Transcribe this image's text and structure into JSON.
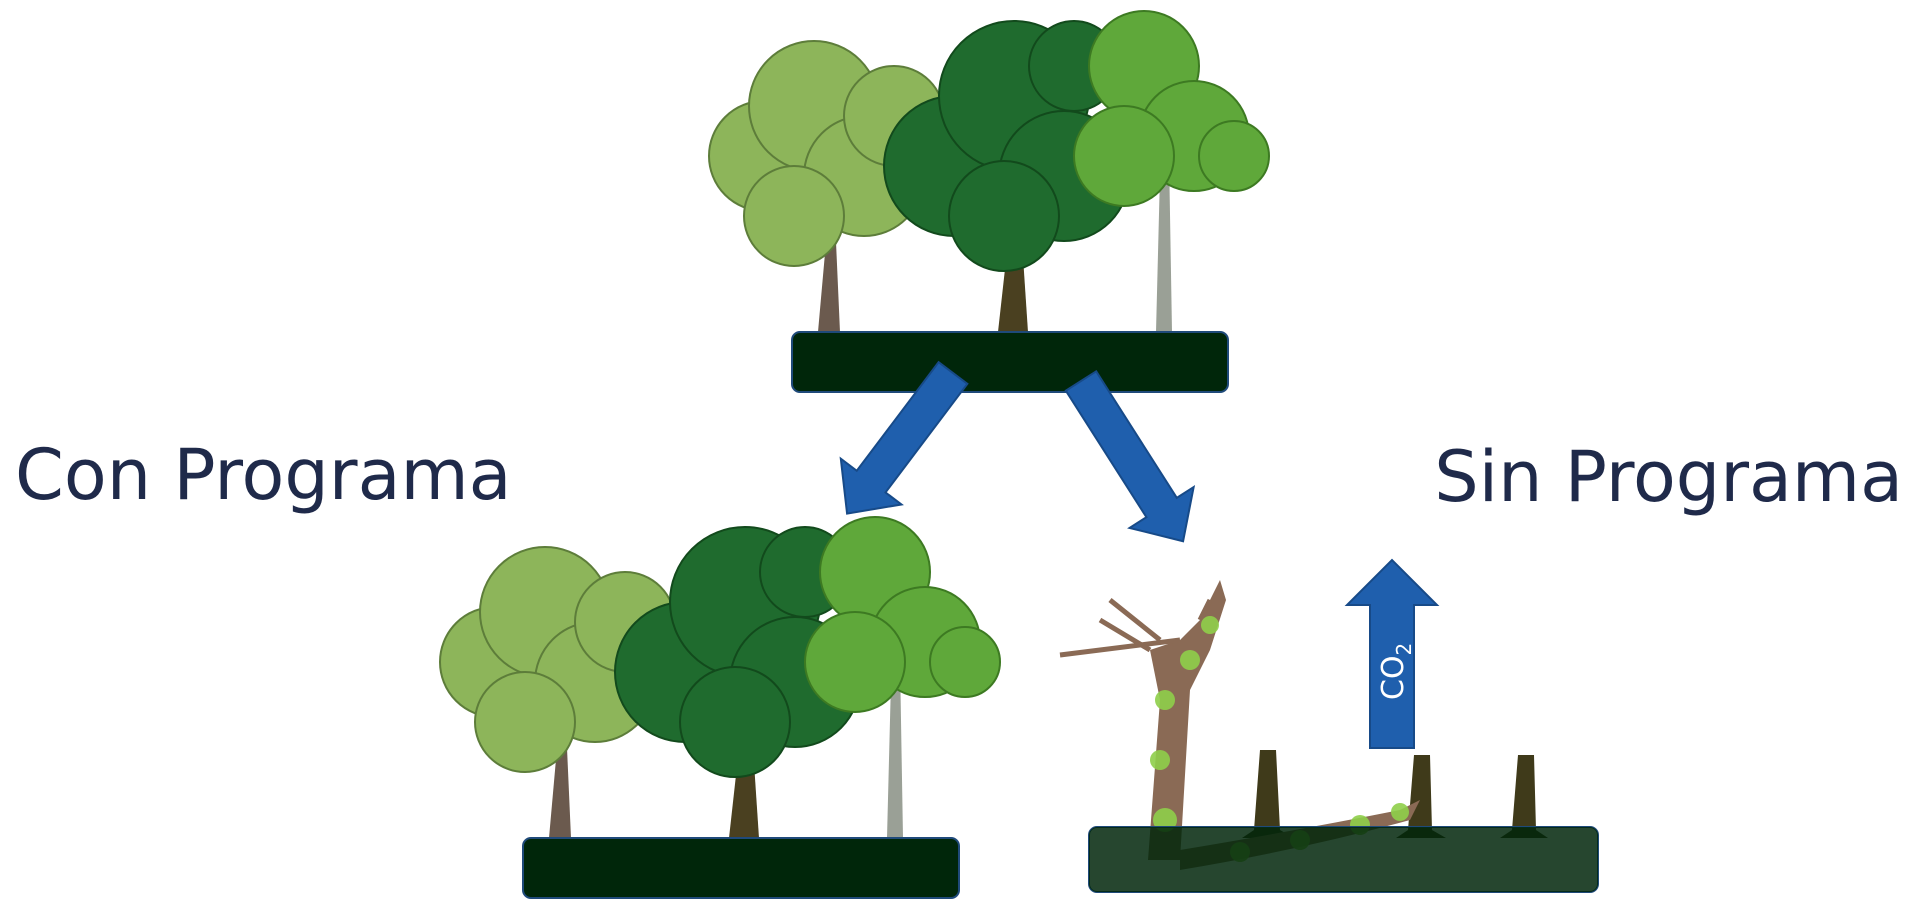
{
  "labels": {
    "left": "Con Programa",
    "right": "Sin Programa"
  },
  "emission_arrow": {
    "main": "CO",
    "subscript": "2"
  }
}
